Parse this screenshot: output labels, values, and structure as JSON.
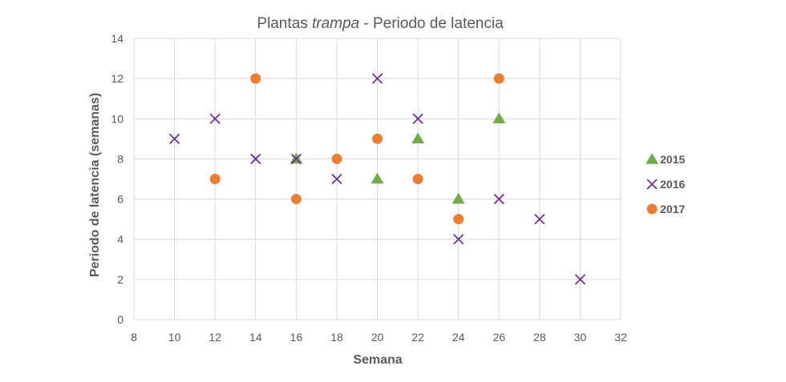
{
  "chart_data": {
    "type": "scatter",
    "title": "Plantas trampa - Periodo de latencia",
    "title_parts": [
      "Plantas ",
      "trampa",
      " - Periodo de latencia"
    ],
    "xlabel": "Semana",
    "ylabel": "Periodo de latencia (semanas)",
    "xlim": [
      8,
      32
    ],
    "ylim": [
      0,
      14
    ],
    "xticks": [
      8,
      10,
      12,
      14,
      16,
      18,
      20,
      22,
      24,
      26,
      28,
      30,
      32
    ],
    "yticks": [
      0,
      2,
      4,
      6,
      8,
      10,
      12,
      14
    ],
    "grid": true,
    "legend_position": "right",
    "series": [
      {
        "name": "2015",
        "marker": "triangle",
        "color": "#70ad47",
        "points": [
          [
            16,
            8
          ],
          [
            20,
            7
          ],
          [
            22,
            9
          ],
          [
            24,
            6
          ],
          [
            26,
            10
          ]
        ]
      },
      {
        "name": "2016",
        "marker": "x",
        "color": "#7030a0",
        "points": [
          [
            10,
            9
          ],
          [
            12,
            10
          ],
          [
            14,
            8
          ],
          [
            16,
            8
          ],
          [
            18,
            7
          ],
          [
            20,
            12
          ],
          [
            22,
            10
          ],
          [
            24,
            4
          ],
          [
            26,
            6
          ],
          [
            28,
            5
          ],
          [
            30,
            2
          ]
        ]
      },
      {
        "name": "2017",
        "marker": "circle",
        "color": "#ed7d31",
        "points": [
          [
            12,
            7
          ],
          [
            14,
            12
          ],
          [
            16,
            6
          ],
          [
            18,
            8
          ],
          [
            20,
            9
          ],
          [
            22,
            7
          ],
          [
            24,
            5
          ],
          [
            26,
            12
          ]
        ]
      }
    ]
  }
}
